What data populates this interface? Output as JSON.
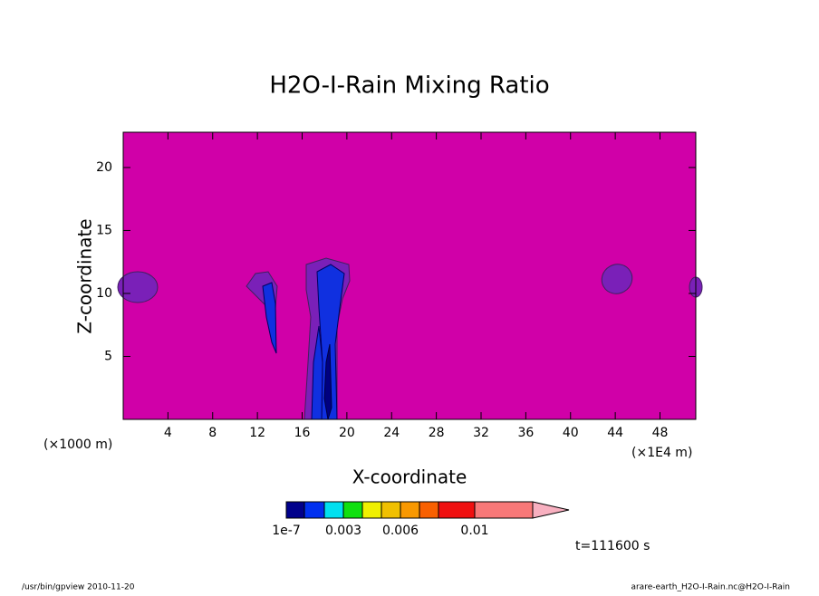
{
  "chart_data": {
    "type": "contour",
    "title": "H2O-I-Rain Mixing Ratio",
    "x_label": "X-coordinate",
    "y_label": "Z-coordinate",
    "x_unit_left": "(×1000 m)",
    "x_unit_right": "(×1E4 m)",
    "time_label": "t=111600 s",
    "footer_left": "/usr/bin/gpview  2010-11-20",
    "footer_right": "arare-earth_H2O-I-Rain.nc@H2O-I-Rain",
    "background_color": "#d000a8",
    "xlim": [
      0,
      51.2
    ],
    "ylim": [
      0,
      22.8
    ],
    "xticks": [
      4,
      8,
      12,
      16,
      20,
      24,
      28,
      32,
      36,
      40,
      44,
      48
    ],
    "yticks": [
      5,
      10,
      15,
      20
    ],
    "colorbar": {
      "colors": [
        "#00008b",
        "#0030f0",
        "#00e0f0",
        "#10e010",
        "#f0f000",
        "#f0c000",
        "#f89800",
        "#f86000",
        "#f01010",
        "#f87878",
        "#f8b0c0"
      ],
      "ticks": [
        {
          "value": 1e-07,
          "label": "1e-7"
        },
        0.003,
        0.006,
        0.01
      ]
    }
  }
}
